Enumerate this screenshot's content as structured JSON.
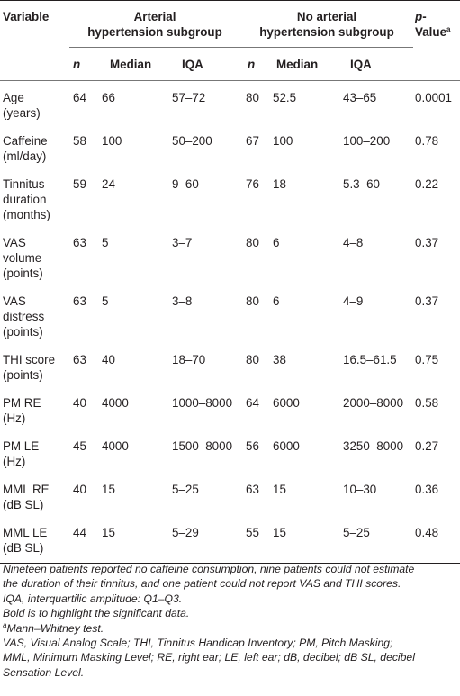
{
  "header": {
    "variable": "Variable",
    "group1": [
      "Arterial",
      "hypertension subgroup"
    ],
    "group2": [
      "No arterial",
      "hypertension subgroup"
    ],
    "pvalue_italic": "p",
    "pvalue_rest": "-Value",
    "pvalue_sup": "a",
    "sub": {
      "n": "n",
      "median": "Median",
      "iqa": "IQA"
    }
  },
  "rows": [
    {
      "var": [
        "Age",
        "(years)"
      ],
      "n1": "64",
      "med1": "66",
      "iqa1": "57–72",
      "n2": "80",
      "med2": "52.5",
      "iqa2": "43–65",
      "p": "0.0001"
    },
    {
      "var": [
        "Caffeine",
        "(ml/day)"
      ],
      "n1": "58",
      "med1": "100",
      "iqa1": "50–200",
      "n2": "67",
      "med2": "100",
      "iqa2": "100–200",
      "p": "0.78"
    },
    {
      "var": [
        "Tinnitus",
        "duration",
        "(months)"
      ],
      "n1": "59",
      "med1": "24",
      "iqa1": "9–60",
      "n2": "76",
      "med2": "18",
      "iqa2": "5.3–60",
      "p": "0.22"
    },
    {
      "var": [
        "VAS",
        "volume",
        "(points)"
      ],
      "n1": "63",
      "med1": "5",
      "iqa1": "3–7",
      "n2": "80",
      "med2": "6",
      "iqa2": "4–8",
      "p": "0.37"
    },
    {
      "var": [
        "VAS",
        "distress",
        "(points)"
      ],
      "n1": "63",
      "med1": "5",
      "iqa1": "3–8",
      "n2": "80",
      "med2": "6",
      "iqa2": "4–9",
      "p": "0.37"
    },
    {
      "var": [
        "THI score",
        "(points)"
      ],
      "n1": "63",
      "med1": "40",
      "iqa1": "18–70",
      "n2": "80",
      "med2": "38",
      "iqa2": "16.5–61.5",
      "p": "0.75"
    },
    {
      "var": [
        "PM RE",
        "(Hz)"
      ],
      "n1": "40",
      "med1": "4000",
      "iqa1": "1000–8000",
      "n2": "64",
      "med2": "6000",
      "iqa2": "2000–8000",
      "p": "0.58"
    },
    {
      "var": [
        "PM LE",
        "(Hz)"
      ],
      "n1": "45",
      "med1": "4000",
      "iqa1": "1500–8000",
      "n2": "56",
      "med2": "6000",
      "iqa2": "3250–8000",
      "p": "0.27"
    },
    {
      "var": [
        "MML RE",
        "(dB SL)"
      ],
      "n1": "40",
      "med1": "15",
      "iqa1": "5–25",
      "n2": "63",
      "med2": "15",
      "iqa2": "10–30",
      "p": "0.36"
    },
    {
      "var": [
        "MML LE",
        "(dB SL)"
      ],
      "n1": "44",
      "med1": "15",
      "iqa1": "5–29",
      "n2": "55",
      "med2": "15",
      "iqa2": "5–25",
      "p": "0.48"
    }
  ],
  "notes": {
    "line1": "Nineteen patients reported no caffeine consumption, nine patients could not estimate",
    "line2": "the duration of their tinnitus, and one patient could not report VAS and THI scores.",
    "line3": "IQA, interquartilic amplitude: Q1–Q3.",
    "line4": "Bold is to highlight the significant data.",
    "footnote_sup": "a",
    "line5": "Mann–Whitney test.",
    "line6": "VAS, Visual Analog Scale; THI, Tinnitus Handicap Inventory; PM, Pitch Masking;",
    "line7": "MML, Minimum Masking Level; RE, right ear; LE, left ear; dB, decibel; dB SL, decibel",
    "line8": "Sensation Level."
  }
}
